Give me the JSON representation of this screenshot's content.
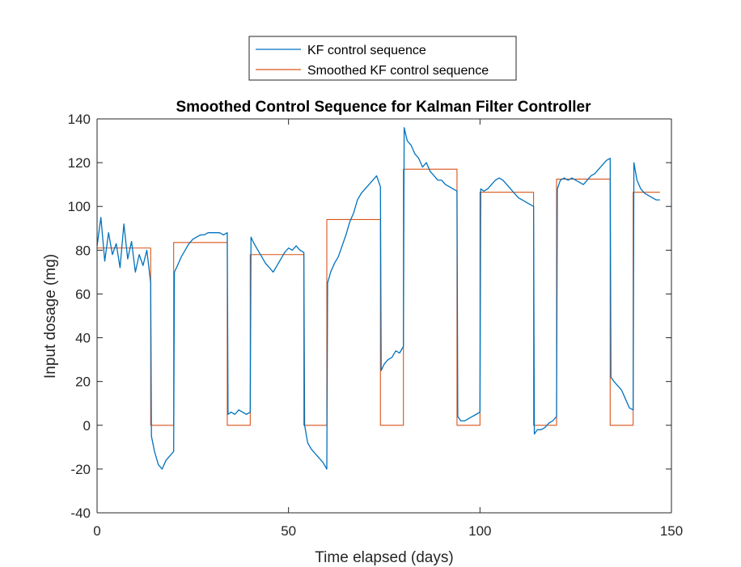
{
  "chart_data": {
    "type": "line",
    "title": "Smoothed Control Sequence for Kalman Filter Controller",
    "xlabel": "Time elapsed (days)",
    "ylabel": "Input dosage (mg)",
    "xlim": [
      0,
      150
    ],
    "ylim": [
      -40,
      140
    ],
    "xticks": [
      0,
      50,
      100,
      150
    ],
    "yticks": [
      -40,
      -20,
      0,
      20,
      40,
      60,
      80,
      100,
      120,
      140
    ],
    "grid": false,
    "legend_position": "top-center-outside",
    "series": [
      {
        "name": "KF control sequence",
        "color": "#0072BD",
        "x": [
          0,
          1,
          2,
          3,
          4,
          5,
          6,
          7,
          8,
          9,
          10,
          11,
          12,
          13,
          14,
          14.2,
          15,
          16,
          17,
          18,
          19,
          20,
          20.2,
          21,
          22,
          23,
          24,
          25,
          26,
          27,
          28,
          29,
          30,
          31,
          32,
          33,
          34,
          34.2,
          35,
          36,
          37,
          38,
          39,
          40,
          40.2,
          41,
          42,
          43,
          44,
          45,
          46,
          47,
          48,
          49,
          50,
          51,
          52,
          53,
          54,
          54.2,
          55,
          56,
          57,
          58,
          59,
          60,
          60.2,
          61,
          62,
          63,
          64,
          65,
          66,
          67,
          68,
          69,
          70,
          71,
          72,
          73,
          74,
          74.2,
          75,
          76,
          77,
          78,
          79,
          80,
          80.2,
          81,
          82,
          83,
          84,
          85,
          86,
          87,
          88,
          89,
          90,
          91,
          92,
          93,
          94,
          94.2,
          95,
          96,
          97,
          98,
          99,
          100,
          100.2,
          101,
          102,
          103,
          104,
          105,
          106,
          107,
          108,
          109,
          110,
          111,
          112,
          113,
          114,
          114.2,
          115,
          116,
          117,
          118,
          119,
          120,
          120.2,
          121,
          122,
          123,
          124,
          125,
          126,
          127,
          128,
          129,
          130,
          131,
          132,
          133,
          134,
          134.2,
          135,
          136,
          137,
          138,
          139,
          140,
          140.2,
          141,
          142,
          143,
          144,
          145,
          146,
          147
        ],
        "y": [
          82,
          95,
          75,
          88,
          78,
          83,
          72,
          92,
          76,
          84,
          70,
          78,
          73,
          80,
          65,
          -5,
          -12,
          -18,
          -20,
          -16,
          -14,
          -12,
          70,
          73,
          77,
          80,
          83,
          85,
          86,
          87,
          87,
          88,
          88,
          88,
          88,
          87,
          88,
          5,
          6,
          5,
          7,
          6,
          5,
          6,
          86,
          83,
          80,
          77,
          74,
          72,
          70,
          73,
          76,
          79,
          81,
          80,
          82,
          80,
          79,
          0,
          -8,
          -11,
          -13,
          -15,
          -17,
          -20,
          65,
          70,
          74,
          77,
          82,
          87,
          93,
          97,
          103,
          106,
          108,
          110,
          112,
          114,
          109,
          25,
          28,
          30,
          31,
          34,
          33,
          36,
          136,
          130,
          128,
          124,
          122,
          118,
          120,
          116,
          114,
          112,
          112,
          110,
          109,
          108,
          107,
          4,
          2,
          2,
          3,
          4,
          5,
          6,
          108,
          107,
          108,
          110,
          112,
          113,
          112,
          110,
          108,
          106,
          104,
          103,
          102,
          101,
          100,
          -4,
          -2,
          -2,
          -1,
          1,
          2,
          4,
          108,
          112,
          113,
          112,
          113,
          112,
          111,
          110,
          112,
          114,
          115,
          117,
          119,
          121,
          122,
          22,
          20,
          18,
          16,
          12,
          8,
          7,
          120,
          112,
          108,
          106,
          105,
          104,
          103,
          103
        ]
      },
      {
        "name": "Smoothed KF control sequence",
        "color": "#D95319",
        "x": [
          0,
          14,
          14,
          20,
          20,
          34,
          34,
          40,
          40,
          54,
          54,
          60,
          60,
          74,
          74,
          80,
          80,
          94,
          94,
          100,
          100,
          114,
          114,
          120,
          120,
          134,
          134,
          140,
          140,
          147
        ],
        "y": [
          81,
          81,
          0,
          0,
          83.5,
          83.5,
          0,
          0,
          78,
          78,
          0,
          0,
          94,
          94,
          0,
          0,
          117,
          117,
          0,
          0,
          106.5,
          106.5,
          0,
          0,
          112.5,
          112.5,
          0,
          0,
          106.5,
          106.5
        ]
      }
    ]
  }
}
